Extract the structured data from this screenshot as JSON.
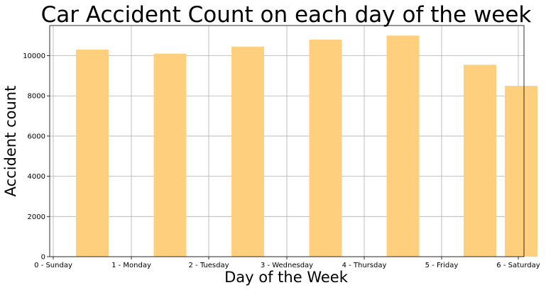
{
  "chart_data": {
    "type": "bar",
    "title": "Car Accident Count on each day of the week",
    "xlabel": "Day of the Week",
    "ylabel": "Accident count",
    "categories": [
      "0 - Sunday",
      "1 - Monday",
      "2 - Tuesday",
      "3 - Wednesday",
      "4 - Thursday",
      "5 - Friday",
      "6 - Saturday"
    ],
    "values": [
      10300,
      10100,
      10450,
      10800,
      11000,
      9550,
      8500
    ],
    "ylim": [
      0,
      11500
    ],
    "yticks": [
      0,
      2000,
      4000,
      6000,
      8000,
      10000
    ],
    "ytick_labels": [
      "0",
      "2000",
      "4000",
      "6000",
      "8000",
      "10000"
    ],
    "grid": true,
    "bar_color": "#fed07e"
  }
}
